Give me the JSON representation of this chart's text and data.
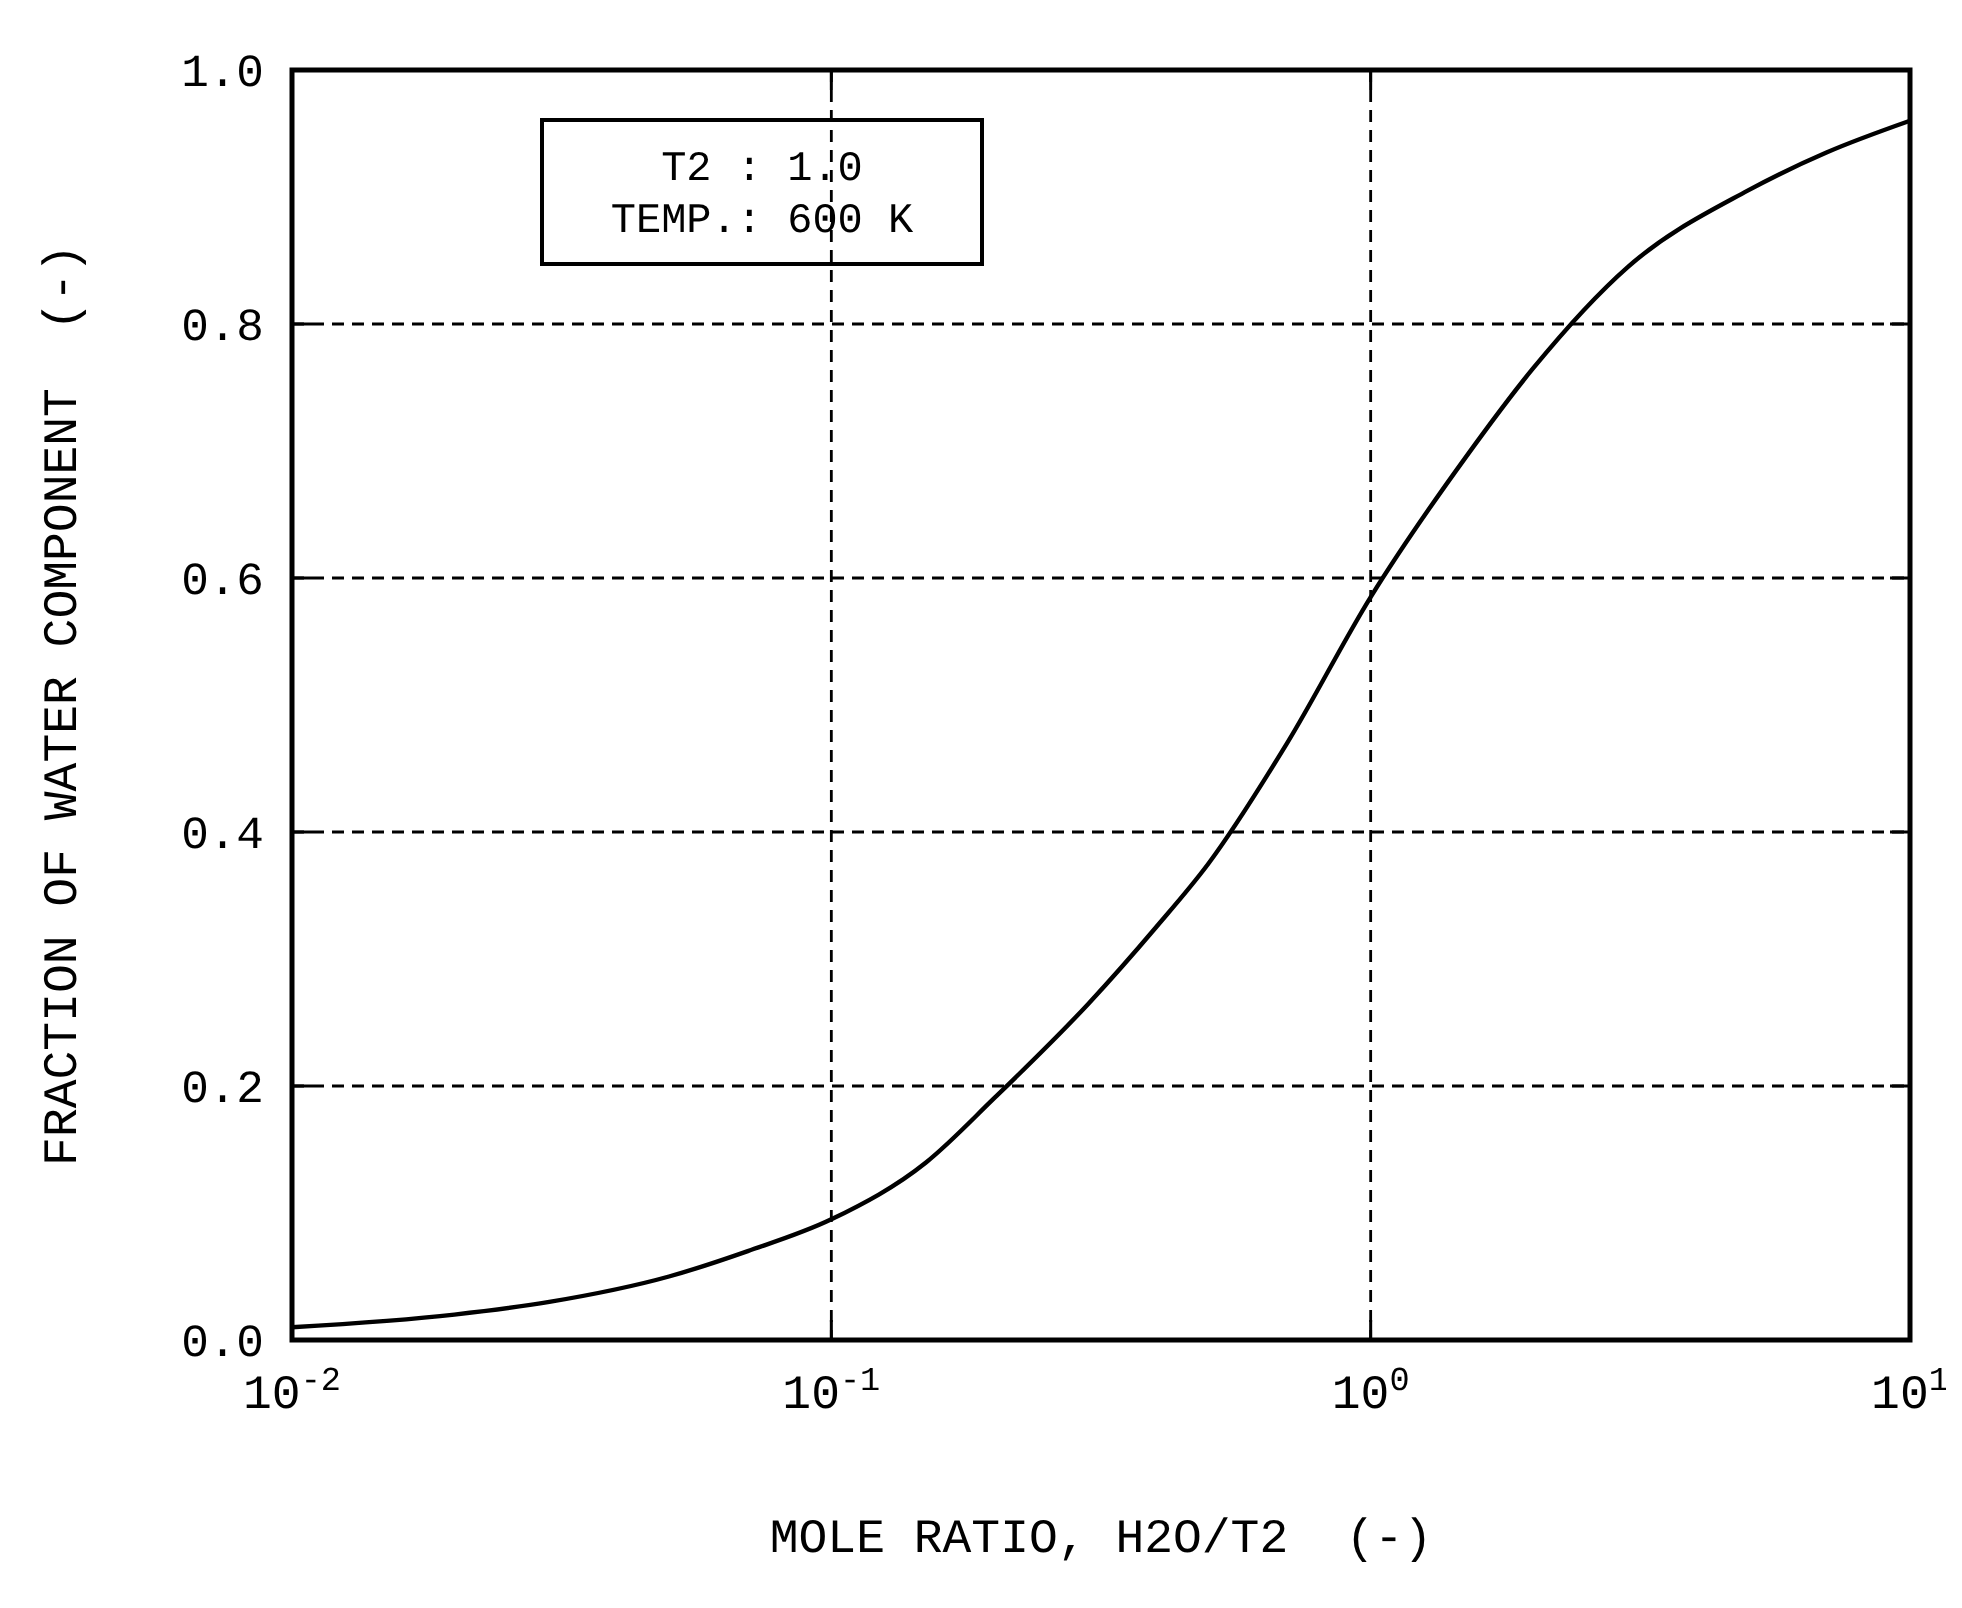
{
  "chart_data": {
    "type": "line",
    "xlabel": "MOLE RATIO, H2O/T2  (-)",
    "ylabel": "FRACTION OF WATER COMPONENT  (-)",
    "annotations": [
      "T2 : 1.0",
      "TEMP.: 600 K"
    ],
    "log": "x",
    "grid": true,
    "marker": "none",
    "line_style": "solid",
    "xlim": [
      0.01,
      10
    ],
    "xticks": [
      {
        "value": 0.01,
        "label": "10$^{-2}$"
      },
      {
        "value": 0.1,
        "label": "10$^{-1}$"
      },
      {
        "value": 1,
        "label": "10$^{0}$"
      },
      {
        "value": 10,
        "label": "10$^{1}$"
      }
    ],
    "ylim": [
      0,
      1
    ],
    "yticks": [
      {
        "value": 0,
        "label": "0.0"
      },
      {
        "value": 0.2,
        "label": "0.2"
      },
      {
        "value": 0.4,
        "label": "0.4"
      },
      {
        "value": 0.6,
        "label": "0.6"
      },
      {
        "value": 0.8,
        "label": "0.8"
      },
      {
        "value": 1,
        "label": "1.0"
      }
    ],
    "x": [
      0.01,
      0.02,
      0.03,
      0.05,
      0.07,
      0.1,
      0.15,
      0.2,
      0.3,
      0.4,
      0.5,
      0.7,
      1,
      1.5,
      2,
      3,
      5,
      7,
      10
    ],
    "series": [
      {
        "color": "#000000",
        "values": [
          0.01,
          0.02,
          0.03,
          0.05,
          0.07,
          0.095,
          0.14,
          0.19,
          0.265,
          0.325,
          0.375,
          0.47,
          0.585,
          0.695,
          0.765,
          0.845,
          0.905,
          0.935,
          0.96
        ]
      }
    ]
  }
}
